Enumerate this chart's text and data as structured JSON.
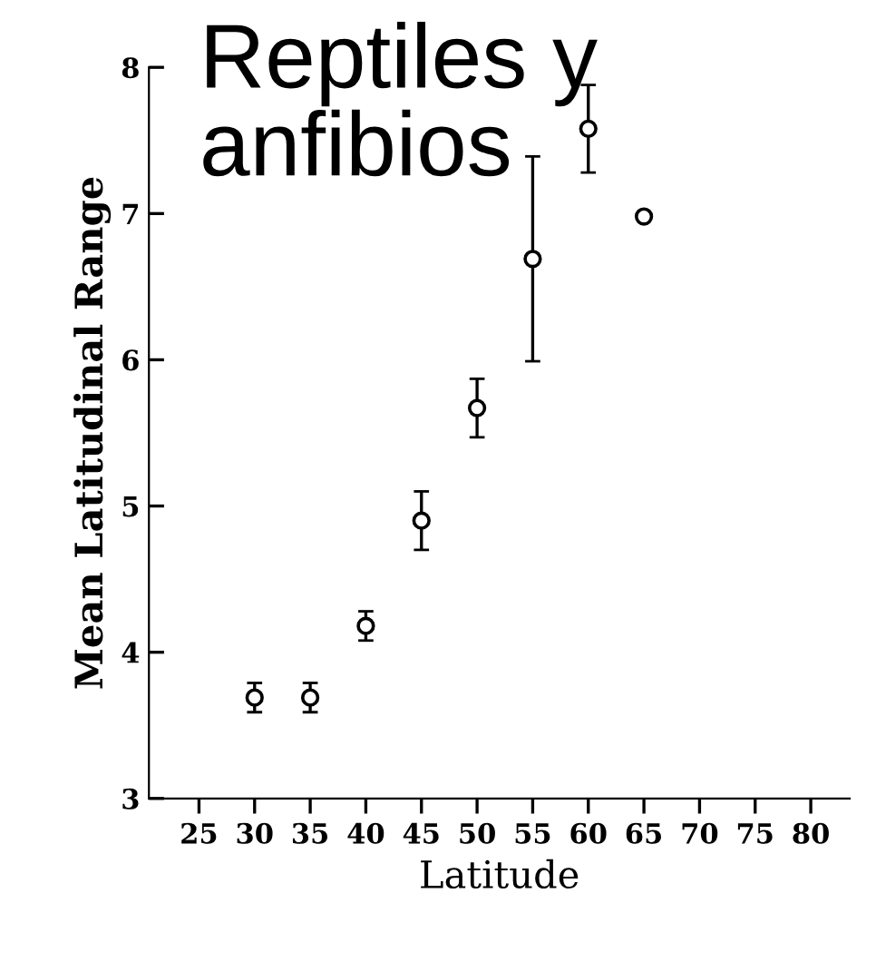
{
  "chart_data": {
    "type": "scatter",
    "title": "Reptiles y anfibios",
    "xlabel": "Latitude",
    "ylabel": "Mean Latitudinal Range",
    "x": [
      30,
      35,
      40,
      45,
      50,
      55,
      60,
      65
    ],
    "series": [
      {
        "color": "#000000",
        "values": [
          3.69,
          3.69,
          4.18,
          4.9,
          5.67,
          6.69,
          7.58,
          6.98
        ],
        "errors": [
          0.1,
          0.1,
          0.1,
          0.2,
          0.2,
          0.7,
          0.3,
          null
        ]
      }
    ],
    "marker": "circle",
    "grid": false,
    "legend": false,
    "xlim": [
      20.5,
      83.5
    ],
    "xticks": [
      25,
      30,
      35,
      40,
      45,
      50,
      55,
      60,
      65,
      70,
      75,
      80
    ],
    "ylim": [
      3,
      8
    ],
    "yticks": [
      3,
      4,
      5,
      6,
      7,
      8
    ]
  }
}
